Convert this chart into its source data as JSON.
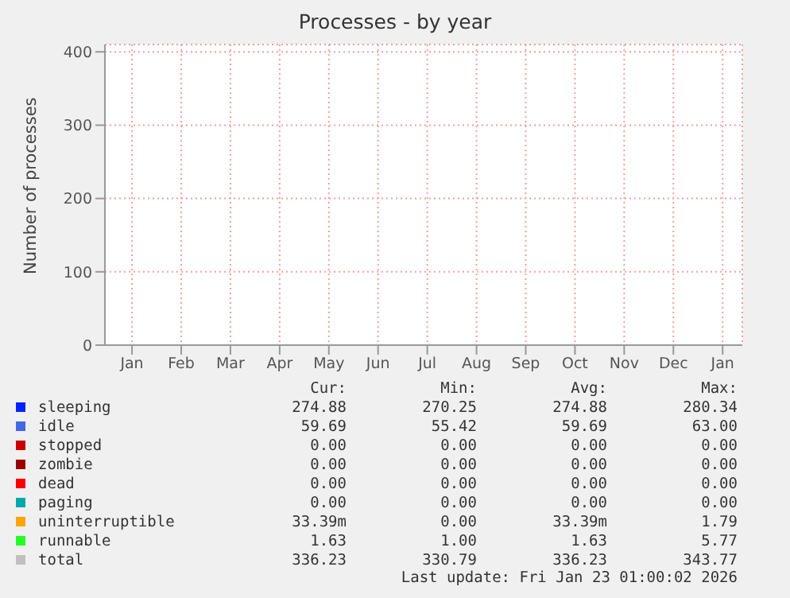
{
  "chart_data": {
    "type": "line",
    "title": "Processes - by year",
    "ylabel": "Number of processes",
    "categories": [
      "Jan",
      "Feb",
      "Mar",
      "Apr",
      "May",
      "Jun",
      "Jul",
      "Aug",
      "Sep",
      "Oct",
      "Nov",
      "Dec",
      "Jan"
    ],
    "ylim": [
      0,
      410
    ],
    "yticks": [
      0,
      100,
      200,
      300,
      400
    ],
    "grid": true,
    "legend": "bottom",
    "series": [
      {
        "name": "sleeping",
        "color": "#0022ff",
        "values": [
          null,
          null,
          null,
          null,
          null,
          null,
          null,
          null,
          null,
          null,
          null,
          null,
          null
        ]
      },
      {
        "name": "idle",
        "color": "#4169e1",
        "values": [
          null,
          null,
          null,
          null,
          null,
          null,
          null,
          null,
          null,
          null,
          null,
          null,
          null
        ]
      },
      {
        "name": "stopped",
        "color": "#cc0000",
        "values": [
          null,
          null,
          null,
          null,
          null,
          null,
          null,
          null,
          null,
          null,
          null,
          null,
          null
        ]
      },
      {
        "name": "zombie",
        "color": "#990000",
        "values": [
          null,
          null,
          null,
          null,
          null,
          null,
          null,
          null,
          null,
          null,
          null,
          null,
          null
        ]
      },
      {
        "name": "dead",
        "color": "#ff0000",
        "values": [
          null,
          null,
          null,
          null,
          null,
          null,
          null,
          null,
          null,
          null,
          null,
          null,
          null
        ]
      },
      {
        "name": "paging",
        "color": "#00aaaa",
        "values": [
          null,
          null,
          null,
          null,
          null,
          null,
          null,
          null,
          null,
          null,
          null,
          null,
          null
        ]
      },
      {
        "name": "uninterruptible",
        "color": "#ffa500",
        "values": [
          null,
          null,
          null,
          null,
          null,
          null,
          null,
          null,
          null,
          null,
          null,
          null,
          null
        ]
      },
      {
        "name": "runnable",
        "color": "#22ff22",
        "values": [
          null,
          null,
          null,
          null,
          null,
          null,
          null,
          null,
          null,
          null,
          null,
          null,
          null
        ]
      },
      {
        "name": "total",
        "color": "#c0c0c0",
        "values": [
          null,
          null,
          null,
          null,
          null,
          null,
          null,
          null,
          null,
          null,
          null,
          null,
          null
        ]
      }
    ],
    "annotations": [
      "Cur:",
      "Min:",
      "Avg:",
      "Max:",
      "274.88",
      "270.25",
      "274.88",
      "280.34",
      "59.69",
      "55.42",
      "59.69",
      "63.00",
      "0.00",
      "0.00",
      "0.00",
      "0.00",
      "0.00",
      "0.00",
      "0.00",
      "0.00",
      "0.00",
      "0.00",
      "0.00",
      "0.00",
      "0.00",
      "0.00",
      "0.00",
      "0.00",
      "33.39m",
      "0.00",
      "33.39m",
      "1.79",
      "1.63",
      "1.00",
      "1.63",
      "5.77",
      "336.23",
      "330.79",
      "336.23",
      "343.77",
      "Last update: Fri Jan 23 01:00:02 2026"
    ]
  }
}
